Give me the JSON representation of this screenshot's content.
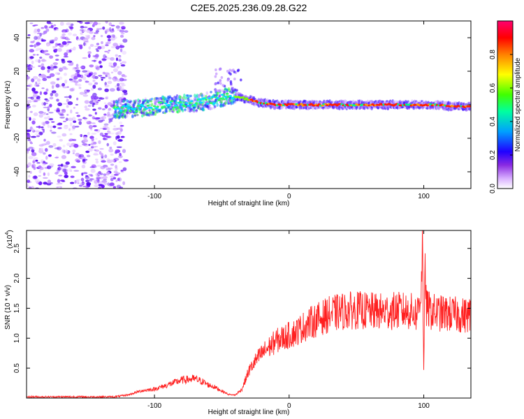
{
  "title": "C2E5.2025.236.09.28.G22",
  "chart_data": [
    {
      "type": "heatmap",
      "xlabel": "Height of straight line (km)",
      "ylabel": "Frequency (Hz)",
      "xlim": [
        -195,
        135
      ],
      "ylim": [
        -50,
        50
      ],
      "xticks": [
        -100,
        0,
        100
      ],
      "yticks": [
        -40,
        -20,
        0,
        20,
        40
      ],
      "x_tick_labels": [
        "-100",
        "0",
        "100"
      ],
      "y_tick_labels": [
        "-40",
        "-20",
        "0",
        "20",
        "40"
      ],
      "colorbar": {
        "label": "Normalized spectral amplitude",
        "range": [
          0,
          1
        ],
        "ticks": [
          0.0,
          0.2,
          0.4,
          0.6,
          0.8
        ],
        "tick_labels": [
          "0.0",
          "0.2",
          "0.4",
          "0.6",
          "0.8"
        ],
        "colors": [
          "#ffffff",
          "#c080ff",
          "#6010ff",
          "#0000ff",
          "#00c0ff",
          "#00ff80",
          "#80ff00",
          "#ffff00",
          "#ff8000",
          "#ff0000",
          "#ff0080"
        ]
      },
      "ridge": {
        "x": [
          -130,
          -110,
          -90,
          -70,
          -55,
          -45,
          -38,
          -30,
          -20,
          -10,
          0,
          20,
          40,
          60,
          80,
          95,
          100,
          110,
          120,
          135
        ],
        "y": [
          -3,
          -2,
          0,
          1,
          3,
          5,
          5,
          3,
          1,
          0,
          0,
          0,
          0,
          0,
          0,
          0,
          0,
          0,
          -1,
          -1
        ]
      },
      "noise_region_x": [
        -195,
        -125
      ]
    },
    {
      "type": "line",
      "xlabel": "Height of straight line (km)",
      "ylabel": "SNR (10 * v/v)",
      "y_multiplier": "(x10",
      "y_multiplier_exp": "4",
      "y_multiplier_close": ")",
      "xlim": [
        -195,
        135
      ],
      "ylim": [
        0,
        2.8
      ],
      "xticks": [
        -100,
        0,
        100
      ],
      "yticks": [
        0.5,
        1.0,
        1.5,
        2.0,
        2.5
      ],
      "x_tick_labels": [
        "-100",
        "0",
        "100"
      ],
      "y_tick_labels": [
        "0.5",
        "1.0",
        "1.5",
        "2.0",
        "2.5"
      ],
      "line_color": "#ff2020",
      "series": [
        {
          "x": [
            -195,
            -160,
            -130,
            -120,
            -110,
            -100,
            -90,
            -80,
            -70,
            -65,
            -60,
            -55,
            -50,
            -45,
            -40,
            -35,
            -30,
            -25,
            -20,
            -15,
            -10,
            -5,
            0,
            5,
            10,
            15,
            20,
            25,
            30,
            40,
            50,
            60,
            70,
            80,
            90,
            95,
            98,
            99,
            100,
            101,
            102,
            105,
            110,
            120,
            130,
            135
          ],
          "y": [
            0.02,
            0.02,
            0.02,
            0.05,
            0.12,
            0.15,
            0.22,
            0.3,
            0.32,
            0.28,
            0.22,
            0.18,
            0.12,
            0.06,
            0.05,
            0.15,
            0.45,
            0.62,
            0.75,
            0.85,
            0.95,
            1.0,
            1.05,
            1.1,
            1.18,
            1.25,
            1.3,
            1.35,
            1.4,
            1.45,
            1.47,
            1.45,
            1.44,
            1.46,
            1.45,
            1.4,
            1.8,
            2.7,
            0.4,
            2.2,
            1.5,
            1.45,
            1.42,
            1.4,
            1.38,
            1.4
          ]
        }
      ]
    }
  ]
}
